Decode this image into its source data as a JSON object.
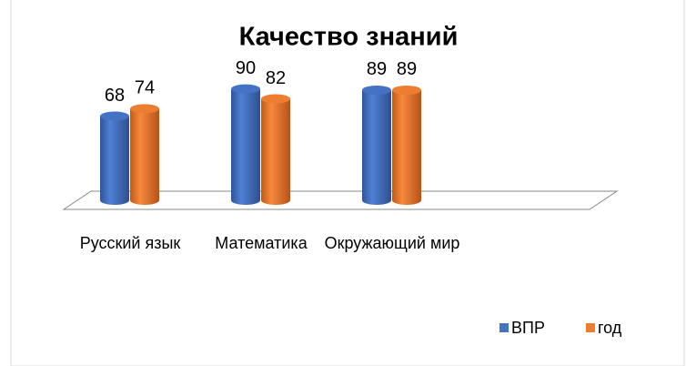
{
  "chart_data": {
    "type": "bar3d",
    "title": "Качество знаний",
    "categories": [
      "Русский язык",
      "Математика",
      "Окружающий мир"
    ],
    "series": [
      {
        "name": "ВПР",
        "color": "#4472c4",
        "values": [
          68,
          90,
          89
        ]
      },
      {
        "name": "год",
        "color": "#ed7d31",
        "values": [
          74,
          82,
          89
        ]
      }
    ],
    "ylim": [
      0,
      100
    ],
    "legend": "bottom-right"
  }
}
